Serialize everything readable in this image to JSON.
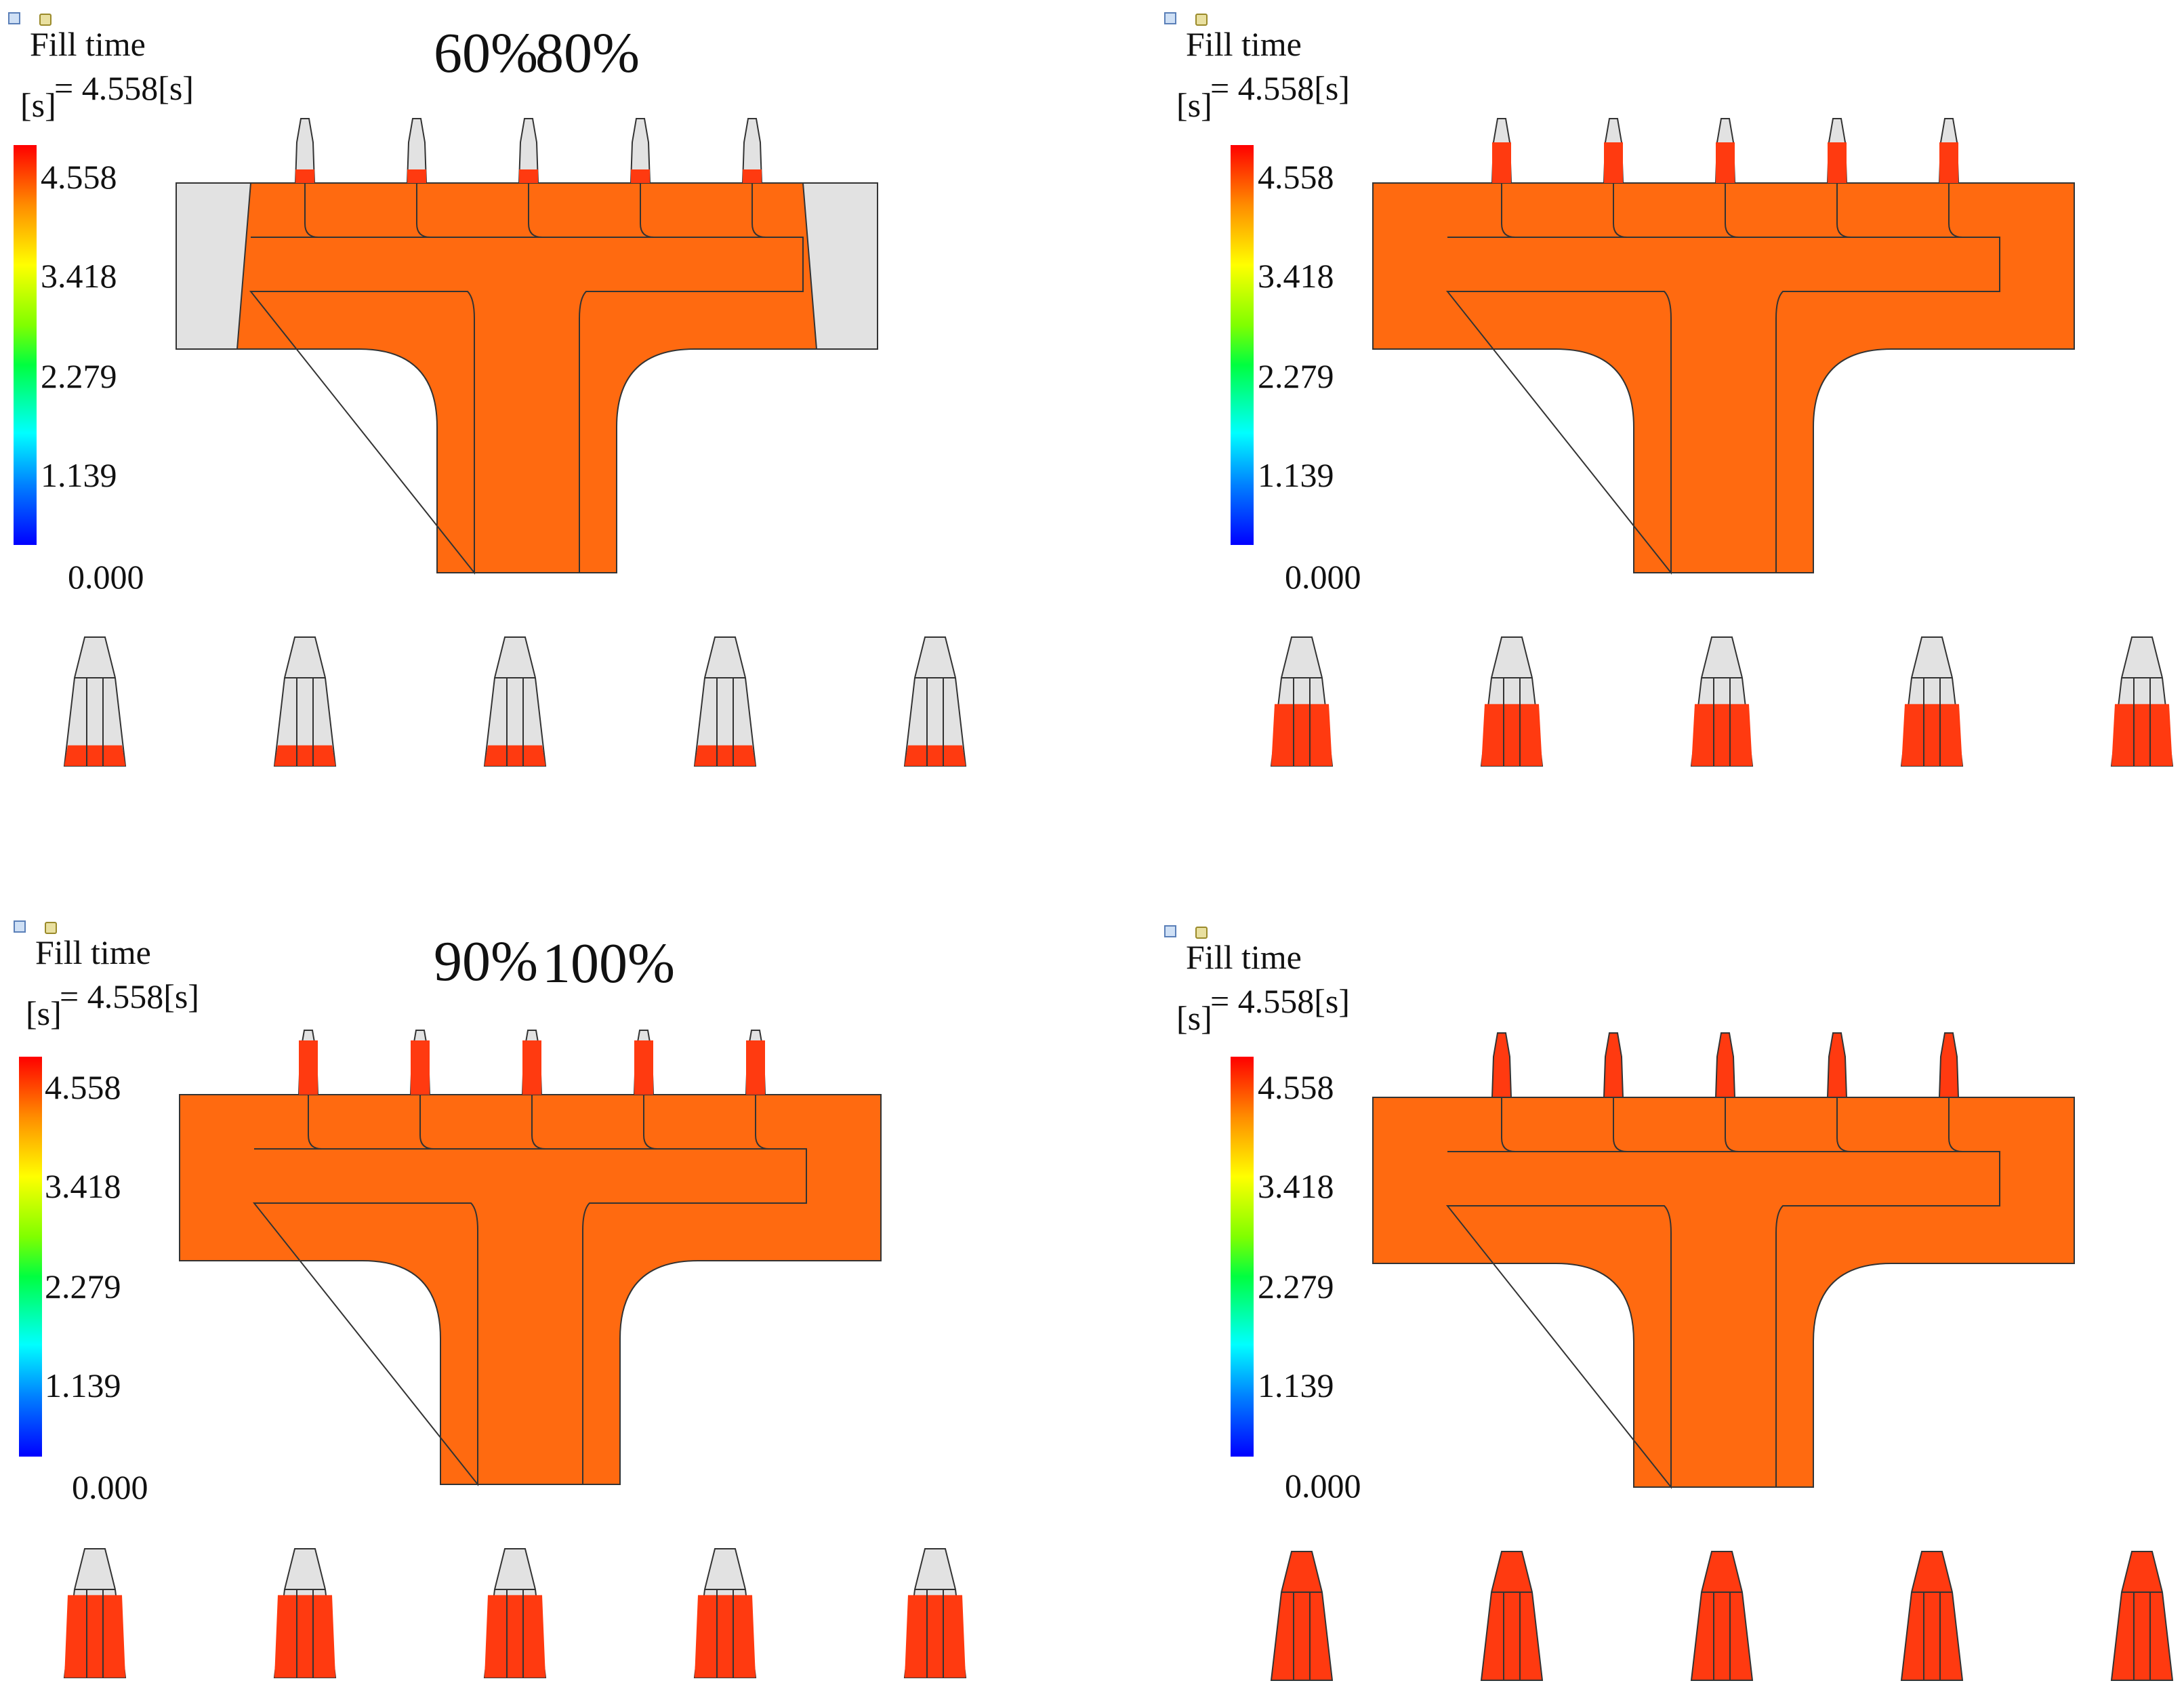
{
  "panels": [
    {
      "title": "60%",
      "fill_label": "Fill time",
      "unit": "[s]",
      "max_label": "= 4.558[s]"
    },
    {
      "title": "80%",
      "fill_label": "Fill time",
      "unit": "[s]",
      "max_label": "= 4.558[s]"
    },
    {
      "title": "90%",
      "fill_label": "Fill time",
      "unit": "[s]",
      "max_label": "= 4.558[s]"
    },
    {
      "title": "100%",
      "fill_label": "Fill time",
      "unit": "[s]",
      "max_label": "= 4.558[s]"
    }
  ],
  "colorbar": {
    "ticks": [
      "4.558",
      "3.418",
      "2.279",
      "1.139",
      "0.000"
    ],
    "colors": {
      "high": "#ff0000",
      "low": "#0000ff",
      "melt": "#ff6a10",
      "unfilled": "#e2e2e2"
    }
  },
  "fill_fraction": [
    0.6,
    0.8,
    0.9,
    1.0
  ]
}
